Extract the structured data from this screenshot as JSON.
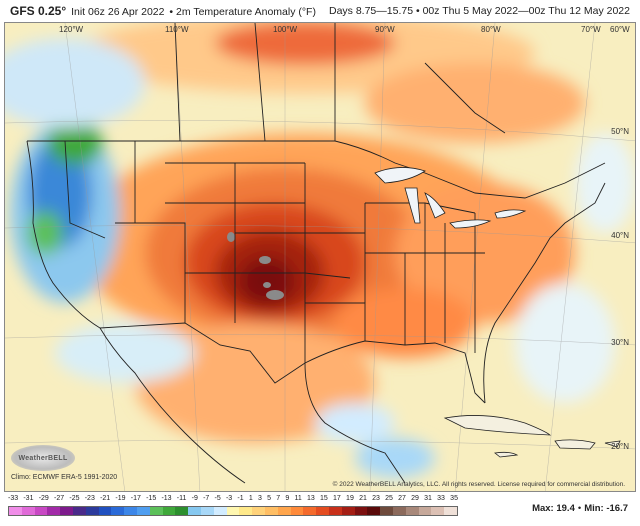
{
  "header": {
    "model": "GFS 0.25°",
    "init": "Init 06z 26 Apr 2022",
    "variable": "• 2m Temperature Anomaly (°F)",
    "days": "Days 8.75—15.75",
    "valid": "• 00z Thu 5 May 2022—00z Thu 12 May 2022"
  },
  "map": {
    "lon_labels": [
      "120°W",
      "110°W",
      "100°W",
      "90°W",
      "80°W",
      "70°W",
      "60°W"
    ],
    "lat_labels": [
      "50°N",
      "40°N",
      "30°N",
      "20°N"
    ],
    "climo": "Climo: ECMWF ERA-5 1991-2020",
    "logo": "WeatherBELL",
    "copyright": "© 2022 WeatherBELL Analytics, LLC. All rights reserved. License required for commercial distribution."
  },
  "legend": {
    "ticks": [
      "-33",
      "-31",
      "-29",
      "-27",
      "-25",
      "-23",
      "-21",
      "-19",
      "-17",
      "-15",
      "-13",
      "-11",
      "-9",
      "-7",
      "-5",
      "-3",
      "-1",
      "1",
      "3",
      "5",
      "7",
      "9",
      "11",
      "13",
      "15",
      "17",
      "19",
      "21",
      "23",
      "25",
      "27",
      "29",
      "31",
      "33",
      "35"
    ],
    "colors": [
      "#f08de8",
      "#e06ad8",
      "#c848c4",
      "#a22aa8",
      "#7d1a8c",
      "#4a2a8a",
      "#2c3a9c",
      "#2050c0",
      "#2a6ad8",
      "#3c86e8",
      "#4f9ef0",
      "#5cc05a",
      "#3fa83a",
      "#2c8f2e",
      "#86c8f0",
      "#a8d8f8",
      "#d2ecff",
      "#fff7b0",
      "#ffe98a",
      "#ffd27a",
      "#ffbe64",
      "#ffa54c",
      "#ff8a3a",
      "#f46a2c",
      "#e44c20",
      "#c8301a",
      "#a41e14",
      "#7c1010",
      "#5a0a0a",
      "#6e4a3c",
      "#8c6a5c",
      "#a8887a",
      "#c6a89a",
      "#dcc0b4",
      "#efe0d8"
    ],
    "max_label": "Max: 19.4",
    "min_label": "Min: -16.7"
  }
}
